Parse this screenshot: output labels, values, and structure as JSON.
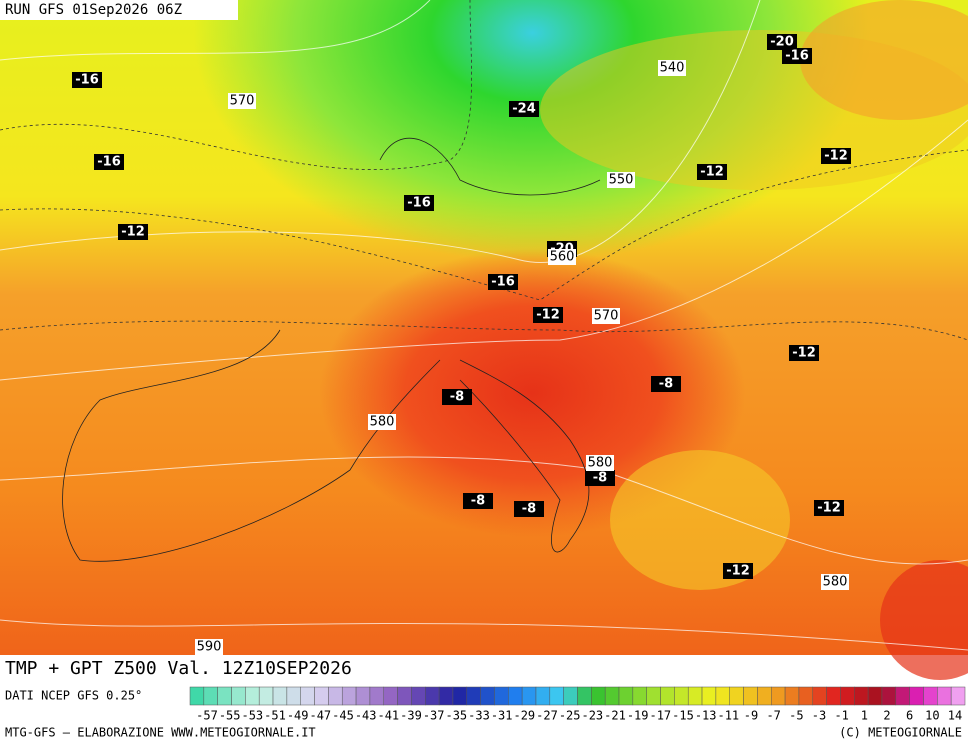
{
  "header": {
    "run": "RUN GFS 01Sep2026 06Z"
  },
  "temperature_labels": [
    -16,
    -16,
    -12,
    -16,
    -24,
    -20,
    -16,
    -12,
    -20,
    -16,
    -12,
    -12,
    -12,
    -8,
    -8,
    -8,
    -8,
    -8,
    -12,
    -12
  ],
  "height_labels": [
    570,
    540,
    550,
    560,
    570,
    580,
    580,
    580,
    590
  ],
  "footer": {
    "title": "TMP + GPT Z500 Val. 12Z10SEP2026",
    "source": "DATI NCEP GFS 0.25°",
    "credit": "MTG-GFS – ELABORAZIONE WWW.METEOGIORNALE.IT",
    "copyright": "(C) METEOGIORNALE"
  },
  "legend": {
    "labels": [
      "-57",
      "-55",
      "-53",
      "-51",
      "-49",
      "-47",
      "-45",
      "-43",
      "-41",
      "-39",
      "-37",
      "-35",
      "-33",
      "-31",
      "-29",
      "-27",
      "-25",
      "-23",
      "-21",
      "-19",
      "-17",
      "-15",
      "-13",
      "-11",
      "-9",
      "-7",
      "-5",
      "-3",
      "-1",
      "1",
      "2",
      "6",
      "10",
      "14"
    ]
  }
}
